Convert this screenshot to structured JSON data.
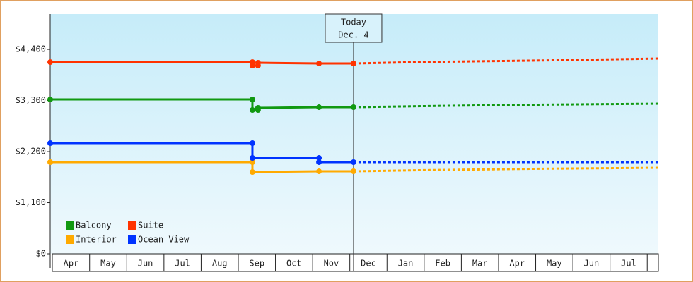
{
  "chart_data": {
    "type": "line",
    "xlim": [
      -0.06,
      16.3
    ],
    "ylim": [
      0,
      5160
    ],
    "xticks": [
      {
        "value": 0.5,
        "label": "Apr"
      },
      {
        "value": 1.5,
        "label": "May"
      },
      {
        "value": 2.5,
        "label": "Jun"
      },
      {
        "value": 3.5,
        "label": "Jul"
      },
      {
        "value": 4.5,
        "label": "Aug"
      },
      {
        "value": 5.5,
        "label": "Sep"
      },
      {
        "value": 6.5,
        "label": "Oct"
      },
      {
        "value": 7.5,
        "label": "Nov"
      },
      {
        "value": 8.5,
        "label": "Dec"
      },
      {
        "value": 9.5,
        "label": "Jan"
      },
      {
        "value": 10.5,
        "label": "Feb"
      },
      {
        "value": 11.5,
        "label": "Mar"
      },
      {
        "value": 12.5,
        "label": "Apr"
      },
      {
        "value": 13.5,
        "label": "May"
      },
      {
        "value": 14.5,
        "label": "Jun"
      },
      {
        "value": 15.5,
        "label": "Jul"
      }
    ],
    "yticks": [
      {
        "value": 0,
        "label": "$0"
      },
      {
        "value": 1100,
        "label": "$1,100"
      },
      {
        "value": 2200,
        "label": "$2,200"
      },
      {
        "value": 3300,
        "label": "$3,300"
      },
      {
        "value": 4400,
        "label": "$4,400"
      }
    ],
    "today": {
      "x": 8.1,
      "label": "Today",
      "date": "Dec. 4"
    },
    "series": [
      {
        "name": "Balcony",
        "color": "#119911",
        "x": [
          -0.06,
          5.38,
          5.38,
          5.53,
          5.53,
          7.17,
          8.1,
          10,
          13,
          16.3
        ],
        "values": [
          3323,
          3323,
          3096,
          3096,
          3141,
          3156,
          3156,
          3180,
          3210,
          3232
        ]
      },
      {
        "name": "Suite",
        "color": "#ff3300",
        "x": [
          -0.06,
          5.38,
          5.38,
          5.53,
          5.53,
          7.17,
          8.1,
          10,
          13,
          16.3
        ],
        "values": [
          4127,
          4127,
          4052,
          4052,
          4112,
          4097,
          4097,
          4130,
          4160,
          4203
        ]
      },
      {
        "name": "Interior",
        "color": "#ffaa00",
        "x": [
          -0.06,
          5.38,
          5.38,
          7.17,
          8.1,
          10,
          13,
          16.3
        ],
        "values": [
          1973,
          1973,
          1760,
          1775,
          1775,
          1800,
          1830,
          1851
        ]
      },
      {
        "name": "Ocean View",
        "color": "#0033ff",
        "x": [
          -0.06,
          5.38,
          5.38,
          7.17,
          7.17,
          8.1,
          16.3
        ],
        "values": [
          2382,
          2382,
          2064,
          2064,
          1973,
          1973,
          1973
        ]
      }
    ]
  }
}
